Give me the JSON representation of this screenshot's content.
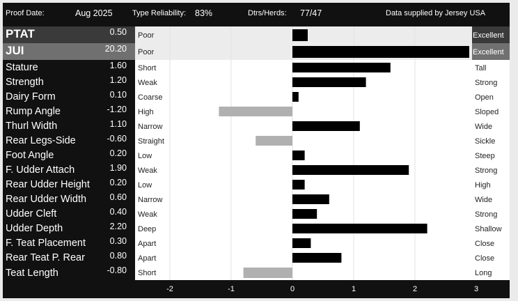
{
  "header": {
    "proof_label": "Proof Date:",
    "proof_value": "Aug 2025",
    "reliability_label": "Type Reliability:",
    "reliability_value": "83%",
    "herds_label": "Dtrs/Herds:",
    "herds_value": "77/47",
    "supplier": "Data supplied by Jersey USA"
  },
  "colors": {
    "positive_bar": "#000000",
    "negative_bar": "#b0b0b0",
    "top_row_bg": "#ececec",
    "top_label_bg_1": "#3a3a3a",
    "top_label_bg_2": "#707070"
  },
  "chart_data": {
    "type": "bar",
    "orientation": "horizontal",
    "xlim": [
      -2,
      3
    ],
    "x_ticks": [
      "-2",
      "-1",
      "0",
      "1",
      "2",
      "3"
    ],
    "grid": true,
    "traits": [
      {
        "name": "PTAT",
        "value": 0.5,
        "value_label": "0.50",
        "low": "Poor",
        "high": "Excellent",
        "scale": 2
      },
      {
        "name": "JUI",
        "value": 20.2,
        "value_label": "20.20",
        "low": "Poor",
        "high": "Excellent",
        "scale": 7
      },
      {
        "name": "Stature",
        "value": 1.6,
        "value_label": "1.60",
        "low": "Short",
        "high": "Tall"
      },
      {
        "name": "Strength",
        "value": 1.2,
        "value_label": "1.20",
        "low": "Weak",
        "high": "Strong"
      },
      {
        "name": "Dairy Form",
        "value": 0.1,
        "value_label": "0.10",
        "low": "Coarse",
        "high": "Open"
      },
      {
        "name": "Rump Angle",
        "value": -1.2,
        "value_label": "-1.20",
        "low": "High",
        "high": "Sloped"
      },
      {
        "name": "Thurl Width",
        "value": 1.1,
        "value_label": "1.10",
        "low": "Narrow",
        "high": "Wide"
      },
      {
        "name": "Rear Legs-Side",
        "value": -0.6,
        "value_label": "-0.60",
        "low": "Straight",
        "high": "Sickle"
      },
      {
        "name": "Foot Angle",
        "value": 0.2,
        "value_label": "0.20",
        "low": "Low",
        "high": "Steep"
      },
      {
        "name": "F. Udder Attach",
        "value": 1.9,
        "value_label": "1.90",
        "low": "Weak",
        "high": "Strong"
      },
      {
        "name": "Rear Udder Height",
        "value": 0.2,
        "value_label": "0.20",
        "low": "Low",
        "high": "High"
      },
      {
        "name": "Rear Udder Width",
        "value": 0.6,
        "value_label": "0.60",
        "low": "Narrow",
        "high": "Wide"
      },
      {
        "name": "Udder Cleft",
        "value": 0.4,
        "value_label": "0.40",
        "low": "Weak",
        "high": "Strong"
      },
      {
        "name": "Udder Depth",
        "value": 2.2,
        "value_label": "2.20",
        "low": "Deep",
        "high": "Shallow"
      },
      {
        "name": "F. Teat Placement",
        "value": 0.3,
        "value_label": "0.30",
        "low": "Apart",
        "high": "Close"
      },
      {
        "name": "Rear Teat P. Rear",
        "value": 0.8,
        "value_label": "0.80",
        "low": "Apart",
        "high": "Close"
      },
      {
        "name": "Teat Length",
        "value": -0.8,
        "value_label": "-0.80",
        "low": "Short",
        "high": "Long"
      }
    ]
  }
}
